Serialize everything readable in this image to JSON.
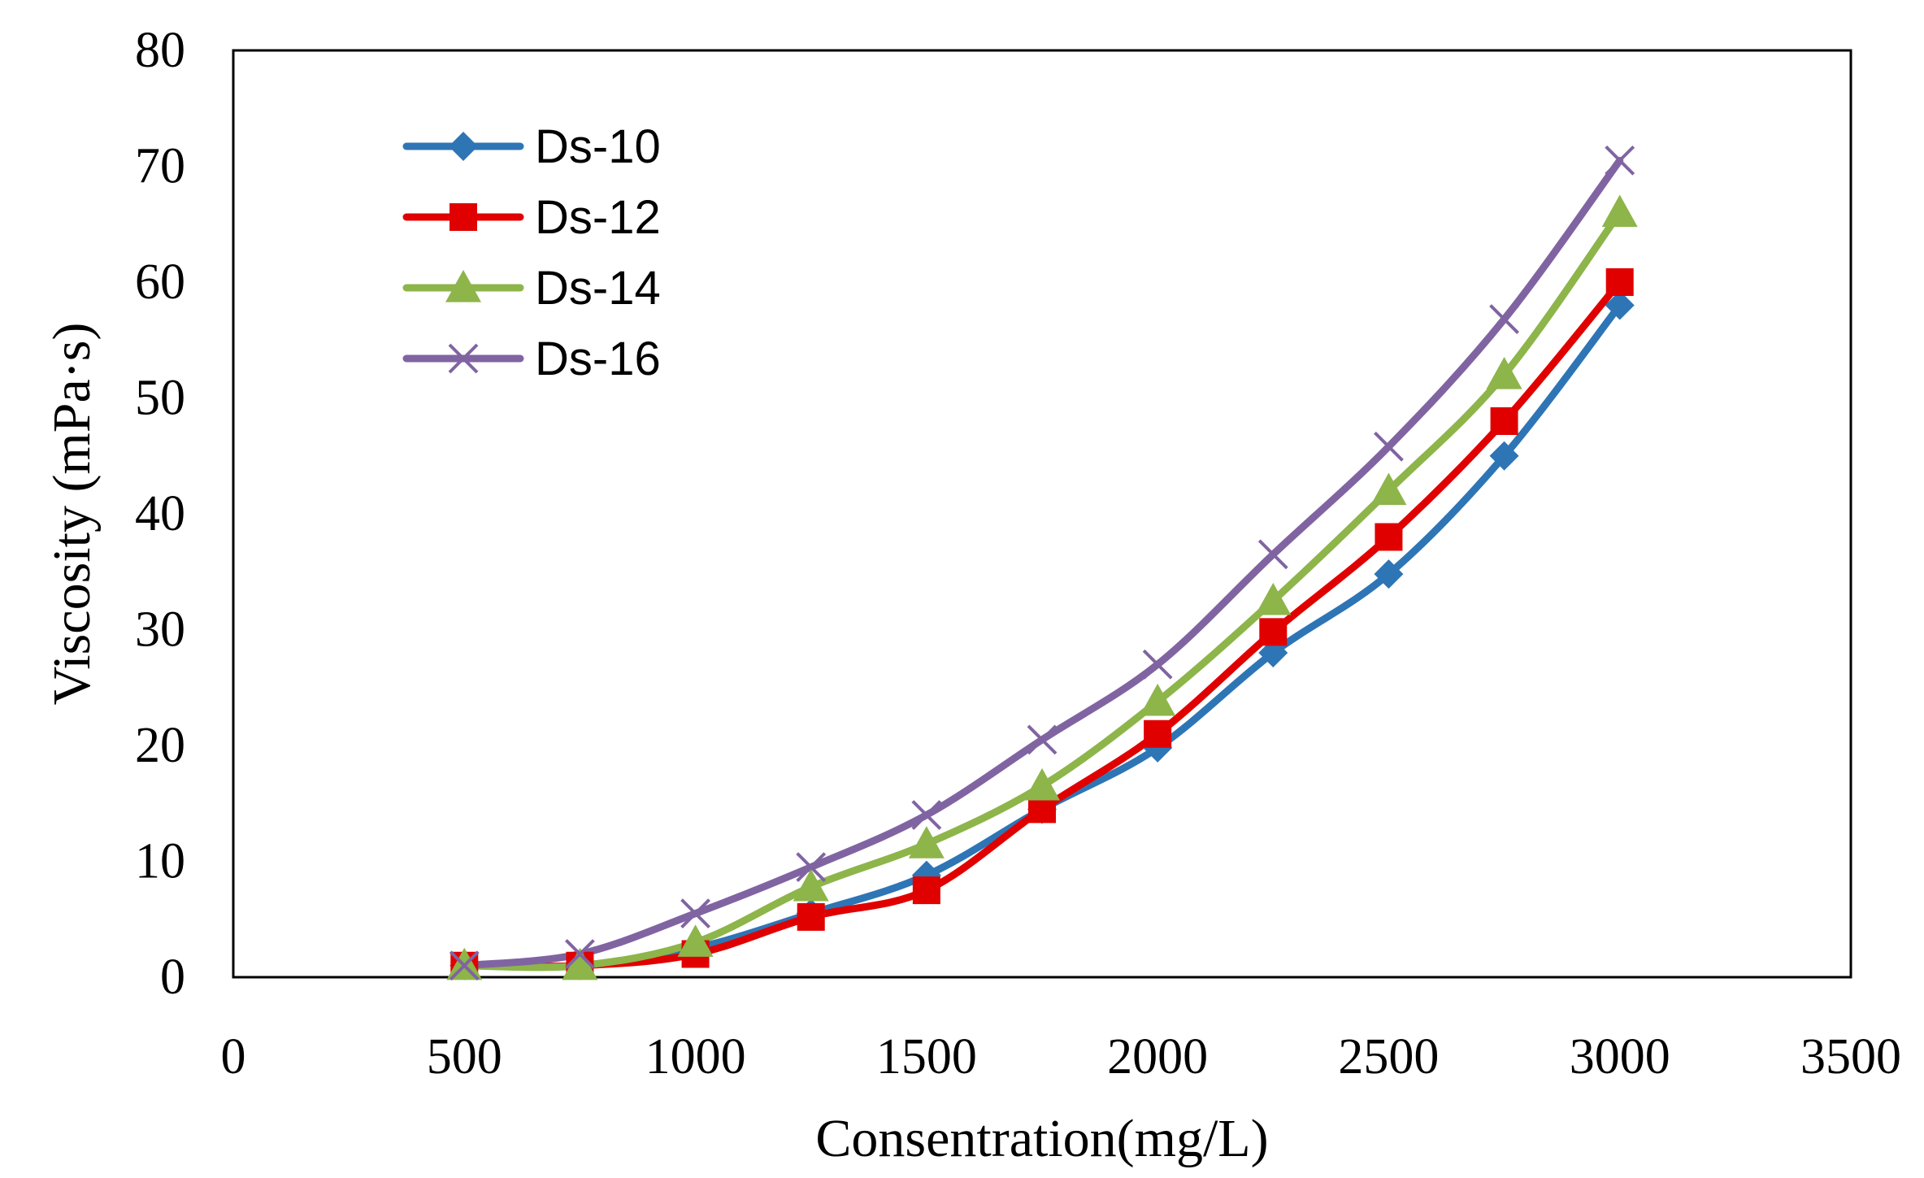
{
  "chart_data": {
    "type": "line",
    "title": "",
    "xlabel": "Consentration(mg/L)",
    "ylabel": "Viscosity (mPa·s)",
    "xlim": [
      0,
      3500
    ],
    "ylim": [
      0,
      80
    ],
    "xticks": [
      0,
      500,
      1000,
      1500,
      2000,
      2500,
      3000,
      3500
    ],
    "yticks": [
      0,
      10,
      20,
      30,
      40,
      50,
      60,
      70,
      80
    ],
    "grid": false,
    "legend_position": "top-left",
    "x": [
      500,
      750,
      1000,
      1250,
      1500,
      1750,
      2000,
      2250,
      2500,
      2750,
      3000
    ],
    "series": [
      {
        "name": "Ds-10",
        "color": "#2E75B6",
        "marker": "diamond",
        "values": [
          1.0,
          1.0,
          2.5,
          5.5,
          8.8,
          14.5,
          19.8,
          28.0,
          34.8,
          45.0,
          58.0
        ]
      },
      {
        "name": "Ds-12",
        "color": "#E00000",
        "marker": "square",
        "values": [
          1.0,
          1.0,
          2.0,
          5.2,
          7.5,
          14.5,
          21.0,
          29.8,
          38.0,
          48.0,
          60.0
        ]
      },
      {
        "name": "Ds-14",
        "color": "#8DB54A",
        "marker": "triangle",
        "values": [
          1.0,
          1.0,
          3.0,
          7.8,
          11.5,
          16.5,
          23.8,
          32.5,
          42.0,
          52.0,
          66.0
        ]
      },
      {
        "name": "Ds-16",
        "color": "#8064A2",
        "marker": "x",
        "values": [
          1.0,
          2.0,
          5.5,
          9.5,
          14.0,
          20.5,
          27.0,
          36.5,
          45.8,
          56.8,
          70.5
        ]
      }
    ]
  }
}
